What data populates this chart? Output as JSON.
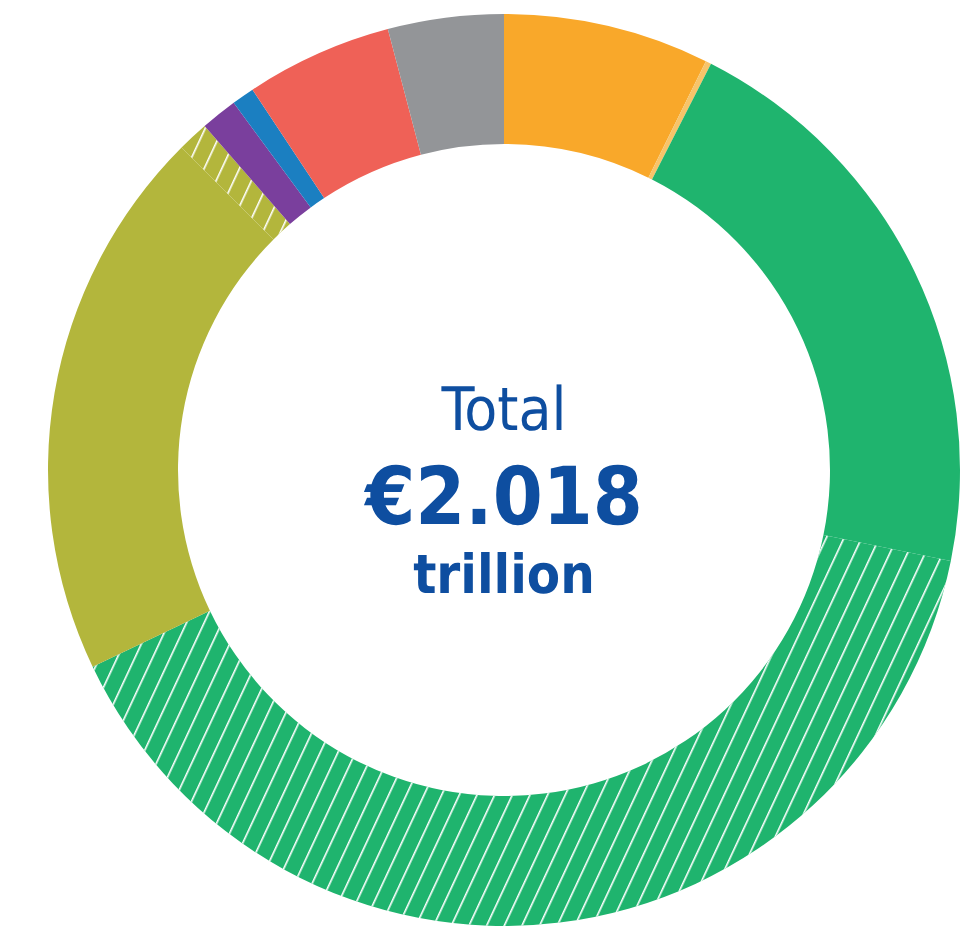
{
  "chart_data": {
    "type": "donut",
    "categories": [
      null,
      null,
      null,
      null,
      null,
      null,
      null,
      null,
      null,
      null
    ],
    "values": [
      7.3,
      0.2,
      20.7,
      39.7,
      19.6,
      1.1,
      1.3,
      0.8,
      5.2,
      4.1
    ],
    "colors": [
      "#f9a82a",
      "#f7c46a",
      "#1fb46e",
      "#1fb46e",
      "#b3b63c",
      "#b3b63c",
      "#7a3f9d",
      "#1b7fc1",
      "#ef6157",
      "#939598"
    ],
    "annotations": [
      "Total",
      "€2.018",
      "trillion"
    ]
  }
}
